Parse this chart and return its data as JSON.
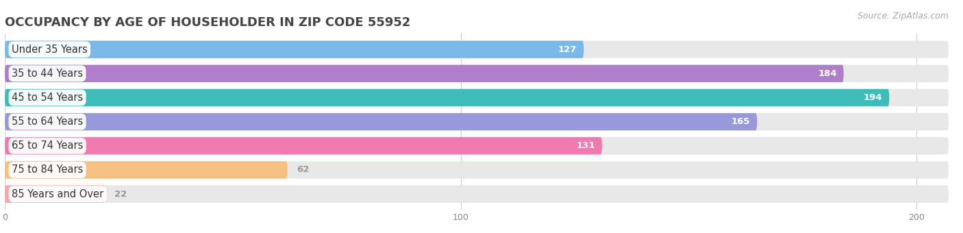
{
  "title": "OCCUPANCY BY AGE OF HOUSEHOLDER IN ZIP CODE 55952",
  "source": "Source: ZipAtlas.com",
  "categories": [
    "Under 35 Years",
    "35 to 44 Years",
    "45 to 54 Years",
    "55 to 64 Years",
    "65 to 74 Years",
    "75 to 84 Years",
    "85 Years and Over"
  ],
  "values": [
    127,
    184,
    194,
    165,
    131,
    62,
    22
  ],
  "bar_colors": [
    "#7ab8e8",
    "#b07ec8",
    "#3dbcb8",
    "#9898dc",
    "#f07ab0",
    "#f5c080",
    "#f5a8a8"
  ],
  "xlim_max": 207,
  "xticks": [
    0,
    100,
    200
  ],
  "title_fontsize": 13,
  "label_fontsize": 10.5,
  "value_fontsize": 9.5,
  "source_fontsize": 9,
  "bar_height": 0.72,
  "bar_gap": 0.28,
  "bg_color": "#f0f0f0",
  "bar_bg_color": "#e8e8e8",
  "value_threshold": 100
}
